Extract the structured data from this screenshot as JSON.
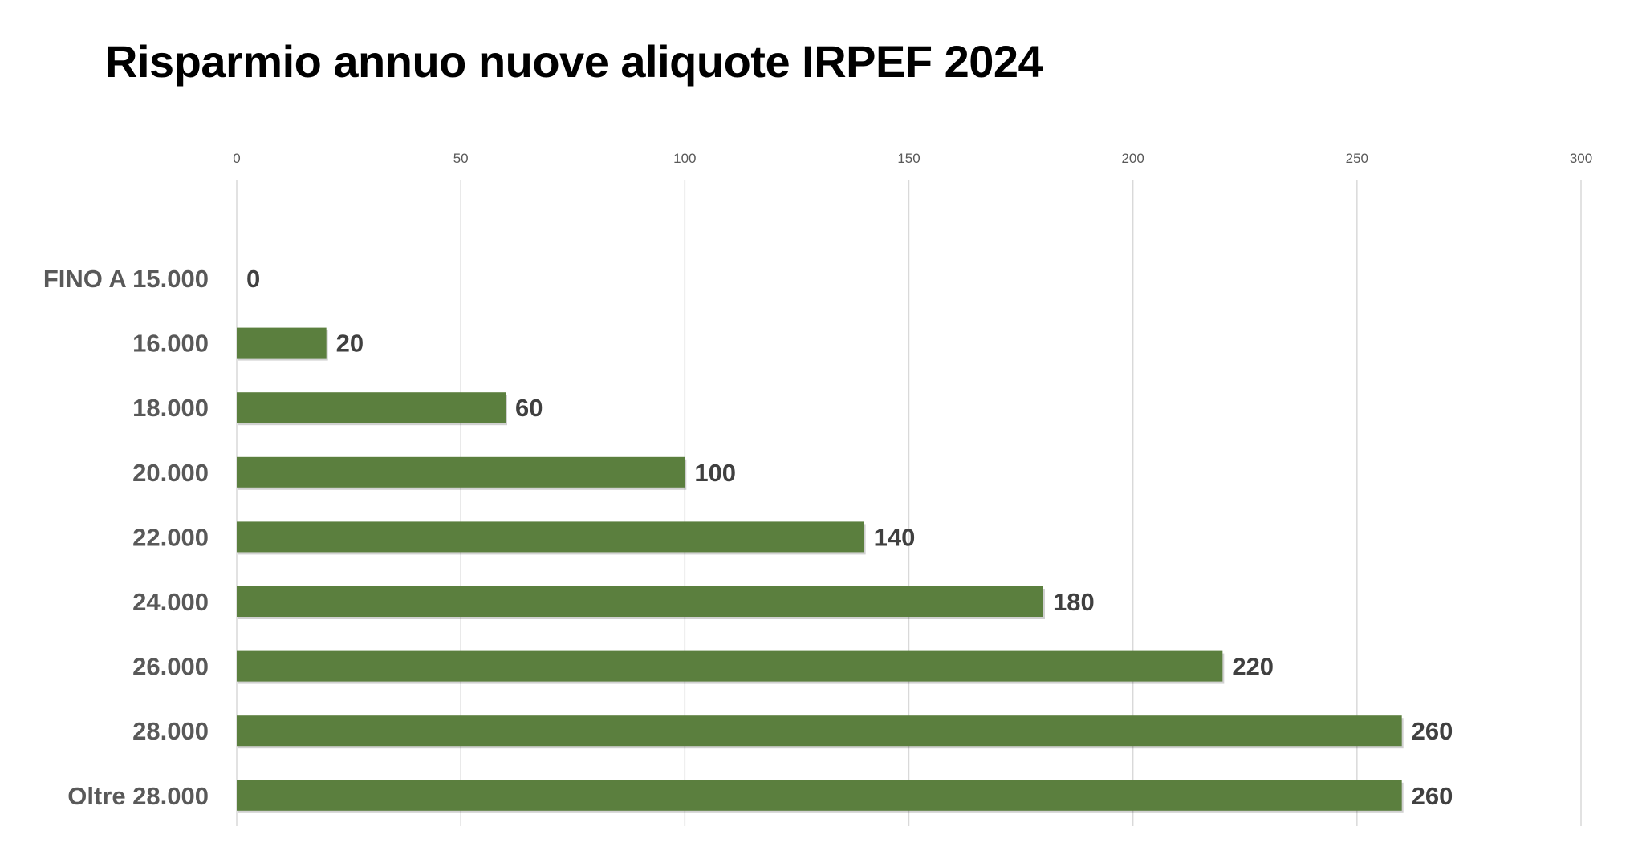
{
  "chart_data": {
    "type": "bar",
    "orientation": "horizontal",
    "title": "Risparmio annuo nuove aliquote IRPEF 2024",
    "xlabel": "",
    "ylabel": "",
    "categories": [
      "FINO A 15.000",
      "16.000",
      "18.000",
      "20.000",
      "22.000",
      "24.000",
      "26.000",
      "28.000",
      "Oltre 28.000"
    ],
    "values": [
      0,
      20,
      60,
      100,
      140,
      180,
      220,
      260,
      260
    ],
    "xlim": [
      0,
      300
    ],
    "xticks": [
      0,
      50,
      100,
      150,
      200,
      250,
      300
    ],
    "axis_position": "top",
    "grid": true,
    "legend": "none",
    "data_labels": true,
    "bar_color": "#5B7F3E"
  }
}
